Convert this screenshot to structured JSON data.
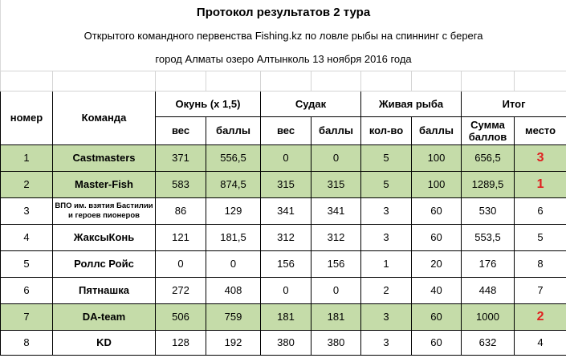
{
  "title": "Протокол результатов 2 тура",
  "subtitle1": "Открытого командного первенства Fishing.kz по ловле рыбы на спиннинг с берега",
  "subtitle2": "город Алматы озеро Алтынколь 13 ноября 2016 года",
  "headers": {
    "number": "номер",
    "team": "Команда",
    "perch": "Окунь (х 1,5)",
    "zander": "Судак",
    "live_fish": "Живая рыба",
    "total": "Итог",
    "weight": "вес",
    "points": "баллы",
    "count": "кол-во",
    "sum_points": "Сумма баллов",
    "place": "место"
  },
  "rows": [
    {
      "num": "1",
      "team": "Castmasters",
      "perch_w": "371",
      "perch_p": "556,5",
      "zander_w": "0",
      "zander_p": "0",
      "live_c": "5",
      "live_p": "100",
      "sum": "656,5",
      "place": "3"
    },
    {
      "num": "2",
      "team": "Master-Fish",
      "perch_w": "583",
      "perch_p": "874,5",
      "zander_w": "315",
      "zander_p": "315",
      "live_c": "5",
      "live_p": "100",
      "sum": "1289,5",
      "place": "1"
    },
    {
      "num": "3",
      "team": "ВПО им. взятия Бастилии и героев пионеров",
      "perch_w": "86",
      "perch_p": "129",
      "zander_w": "341",
      "zander_p": "341",
      "live_c": "3",
      "live_p": "60",
      "sum": "530",
      "place": "6"
    },
    {
      "num": "4",
      "team": "ЖаксыКонь",
      "perch_w": "121",
      "perch_p": "181,5",
      "zander_w": "312",
      "zander_p": "312",
      "live_c": "3",
      "live_p": "60",
      "sum": "553,5",
      "place": "5"
    },
    {
      "num": "5",
      "team": "Роллс Ройс",
      "perch_w": "0",
      "perch_p": "0",
      "zander_w": "156",
      "zander_p": "156",
      "live_c": "1",
      "live_p": "20",
      "sum": "176",
      "place": "8"
    },
    {
      "num": "6",
      "team": "Пятнашка",
      "perch_w": "272",
      "perch_p": "408",
      "zander_w": "0",
      "zander_p": "0",
      "live_c": "2",
      "live_p": "40",
      "sum": "448",
      "place": "7"
    },
    {
      "num": "7",
      "team": "DA-team",
      "perch_w": "506",
      "perch_p": "759",
      "zander_w": "181",
      "zander_p": "181",
      "live_c": "3",
      "live_p": "60",
      "sum": "1000",
      "place": "2"
    },
    {
      "num": "8",
      "team": "KD",
      "perch_w": "128",
      "perch_p": "192",
      "zander_w": "380",
      "zander_p": "380",
      "live_c": "3",
      "live_p": "60",
      "sum": "632",
      "place": "4"
    }
  ],
  "colors": {
    "highlight_row": "#c5dca9",
    "top_place": "#e02020"
  }
}
